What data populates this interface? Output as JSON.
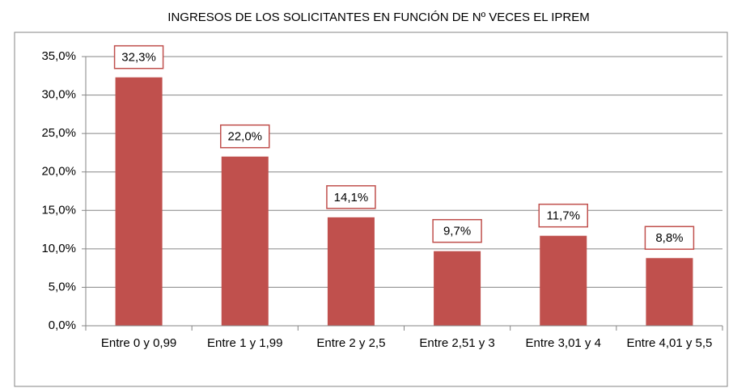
{
  "chart_data": {
    "type": "bar",
    "title": "INGRESOS DE LOS SOLICITANTES EN FUNCIÓN DE Nº VECES EL IPREM",
    "categories": [
      "Entre 0 y 0,99",
      "Entre 1 y 1,99",
      "Entre 2 y 2,5",
      "Entre 2,51 y 3",
      "Entre 3,01 y 4",
      "Entre 4,01 y 5,5"
    ],
    "values": [
      32.3,
      22.0,
      14.1,
      9.7,
      11.7,
      8.8
    ],
    "value_labels": [
      "32,3%",
      "22,0%",
      "14,1%",
      "9,7%",
      "11,7%",
      "8,8%"
    ],
    "color": "#c0504d",
    "ylim": [
      0,
      35
    ],
    "yticks": [
      {
        "value": 0,
        "label": "0,0%"
      },
      {
        "value": 5,
        "label": "5,0%"
      },
      {
        "value": 10,
        "label": "10,0%"
      },
      {
        "value": 15,
        "label": "15,0%"
      },
      {
        "value": 20,
        "label": "20,0%"
      },
      {
        "value": 25,
        "label": "25,0%"
      },
      {
        "value": 30,
        "label": "30,0%"
      },
      {
        "value": 35,
        "label": "35,0%"
      }
    ],
    "grid": true
  }
}
